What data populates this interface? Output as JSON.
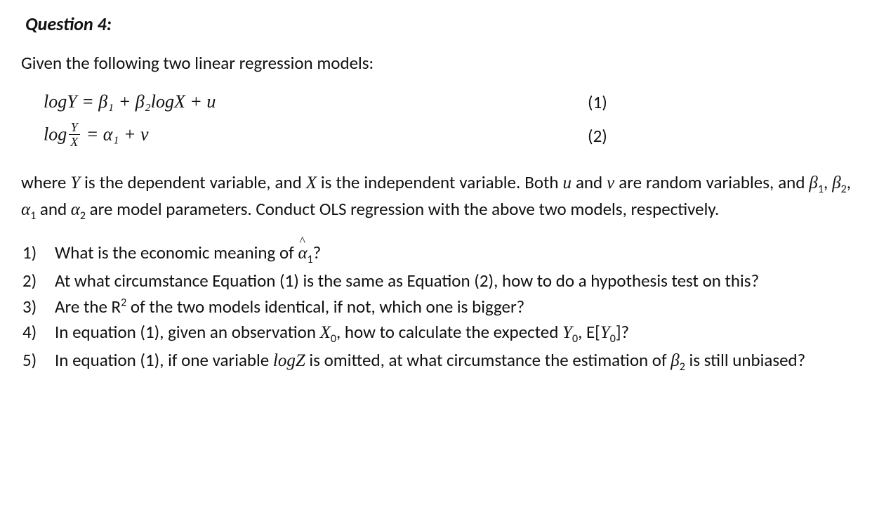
{
  "title": "Question 4:",
  "intro": "Given the following two linear regression models:",
  "eq1": {
    "lhs": "logY",
    "rhs": " = β₁ + β₂logX + u",
    "num": "(1)"
  },
  "eq2": {
    "log": "log",
    "fracNum": "Y",
    "fracDen": "X",
    "rhs": " = α₁ + v",
    "num": "(2)"
  },
  "context": {
    "p1a": "where ",
    "Y": "Y",
    "p1b": " is the dependent variable, and ",
    "X": "X",
    "p1c": " is the independent variable. Both ",
    "u": "u",
    "p1d": " and ",
    "v": "v",
    "p1e": " are random variables, and ",
    "b1": "β",
    "s1": "1",
    "c1": ", ",
    "b2": "β",
    "s2": "2",
    "c2": ", ",
    "a1": "α",
    "s3": "1",
    "c3": " and ",
    "a2": "α",
    "s4": "2",
    "p1f": " are model parameters. Conduct OLS regression with the above two models, respectively."
  },
  "q": {
    "n1": "1)",
    "q1a": "What is the economic meaning of ",
    "q1hat": "α",
    "q1sub": "1",
    "q1b": "?",
    "n2": "2)",
    "q2": "At what circumstance Equation (1) is the same as Equation (2), how to do a hypothesis test on this?",
    "n3": "3)",
    "q3a": "Are the R",
    "q3sup": "2",
    "q3b": " of the two models identical, if not, which one is bigger?",
    "n4": "4)",
    "q4a": "In equation (1), given an observation ",
    "q4X": "X",
    "q4s0a": "0",
    "q4b": ", how to calculate the expected ",
    "q4Y": "Y",
    "q4s0b": "0",
    "q4c": ", E[",
    "q4Y2": "Y",
    "q4s0c": "0",
    "q4d": "]?",
    "n5": "5)",
    "q5a": "In equation (1), if one variable ",
    "q5logZ": "logZ",
    "q5b": " is omitted, at what circumstance the estimation of ",
    "q5beta": "β",
    "q5s2": "2",
    "q5c": " is still unbiased?"
  }
}
